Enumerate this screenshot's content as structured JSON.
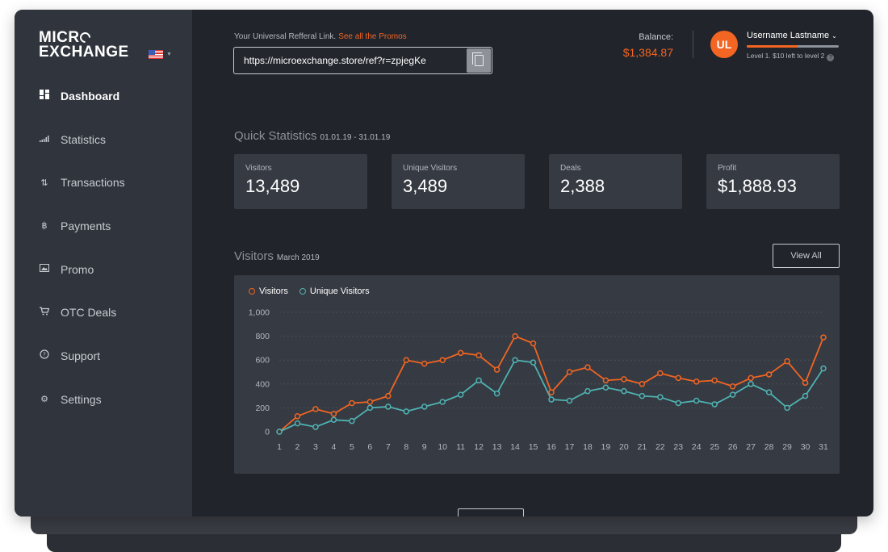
{
  "brand": {
    "line1": "MICR",
    "line1_tail": "",
    "line2": "EXCHANGE"
  },
  "sidebar": {
    "items": [
      {
        "label": "Dashboard",
        "icon": "dashboard-icon",
        "active": true
      },
      {
        "label": "Statistics",
        "icon": "bar-chart-icon",
        "active": false
      },
      {
        "label": "Transactions",
        "icon": "arrows-updown-icon",
        "active": false
      },
      {
        "label": "Payments",
        "icon": "bitcoin-icon",
        "active": false
      },
      {
        "label": "Promo",
        "icon": "image-icon",
        "active": false
      },
      {
        "label": "OTC Deals",
        "icon": "cart-icon",
        "active": false
      },
      {
        "label": "Support",
        "icon": "help-circle-icon",
        "active": false
      },
      {
        "label": "Settings",
        "icon": "gear-icon",
        "active": false
      }
    ]
  },
  "referral": {
    "label": "Your Universal Refferal Link.",
    "link_text": "See all the Promos",
    "url": "https://microexchange.store/ref?r=zpjegKe"
  },
  "balance": {
    "label": "Balance:",
    "value": "$1,384.87"
  },
  "user": {
    "initials": "UL",
    "name": "Username Lastname",
    "level_text": "Level 1. $10 left to level 2",
    "level_progress": 0.55
  },
  "quick_stats": {
    "title": "Quick Statistics",
    "range": "01.01.19 - 31.01.19",
    "cards": [
      {
        "label": "Visitors",
        "value": "13,489"
      },
      {
        "label": "Unique Visitors",
        "value": "3,489"
      },
      {
        "label": "Deals",
        "value": "2,388"
      },
      {
        "label": "Profit",
        "value": "$1,888.93"
      }
    ]
  },
  "visitors_section": {
    "title": "Visitors",
    "subtitle": "March 2019",
    "view_all": "View All"
  },
  "colors": {
    "accent": "#f26522",
    "teal": "#4fb3b3"
  },
  "chart_data": {
    "type": "line",
    "x": [
      1,
      2,
      3,
      4,
      5,
      6,
      7,
      8,
      9,
      10,
      11,
      12,
      13,
      14,
      15,
      16,
      17,
      18,
      19,
      20,
      21,
      22,
      23,
      24,
      25,
      26,
      27,
      28,
      29,
      30,
      31
    ],
    "series": [
      {
        "name": "Visitors",
        "color": "#f26522",
        "values": [
          0,
          130,
          190,
          150,
          240,
          250,
          300,
          600,
          570,
          600,
          660,
          640,
          520,
          800,
          740,
          330,
          500,
          540,
          430,
          440,
          400,
          490,
          450,
          420,
          430,
          380,
          450,
          480,
          590,
          410,
          790
        ]
      },
      {
        "name": "Unique Visitors",
        "color": "#4fb3b3",
        "values": [
          0,
          70,
          40,
          100,
          90,
          200,
          210,
          170,
          210,
          250,
          310,
          430,
          320,
          600,
          580,
          270,
          260,
          340,
          370,
          340,
          300,
          290,
          240,
          260,
          230,
          310,
          400,
          330,
          200,
          300,
          530
        ]
      }
    ],
    "yticks": [
      "0",
      "200",
      "400",
      "600",
      "800",
      "1,000"
    ],
    "ylim": [
      0,
      1000
    ],
    "legend": "top-left",
    "grid": true
  }
}
